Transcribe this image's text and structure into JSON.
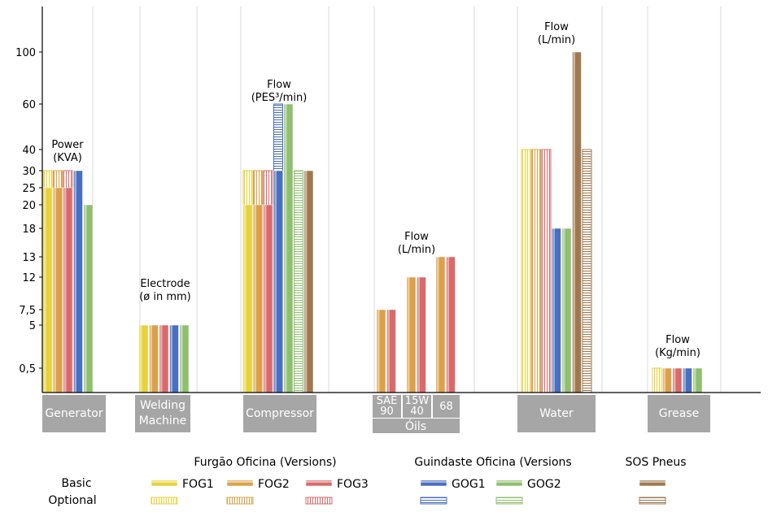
{
  "chart_data": {
    "type": "bar",
    "title": "",
    "xlabel": "",
    "ylabel": "",
    "y_ticks": [
      "0,5",
      "5",
      "7,5",
      "12",
      "13",
      "18",
      "20",
      "25",
      "30",
      "40",
      "60",
      "100"
    ],
    "y_tick_values": [
      0.5,
      5,
      7.5,
      12,
      13,
      18,
      20,
      25,
      30,
      40,
      60,
      100
    ],
    "grid": "vertical",
    "colors": {
      "FOG1": "#e6d23a",
      "FOG2": "#dca04a",
      "FOG3": "#d96a6a",
      "GOG1": "#4a6fc0",
      "GOG2": "#8fbf6f",
      "SOS": "#a07850",
      "category_box": "#a6a6a6"
    },
    "groups": [
      {
        "category": "Generator",
        "annotation": [
          "Power",
          "(KVA)"
        ],
        "bars": [
          {
            "series": "FOG1",
            "basic": 25,
            "optional": 30
          },
          {
            "series": "FOG2",
            "basic": 25,
            "optional": 30
          },
          {
            "series": "FOG3",
            "basic": 25,
            "optional": 30
          },
          {
            "series": "GOG1",
            "basic": 30,
            "optional": null
          },
          {
            "series": "GOG2",
            "basic": 20,
            "optional": null
          }
        ]
      },
      {
        "category": "Welding Machine",
        "annotation": [
          "Electrode",
          "(ø in mm)"
        ],
        "bars": [
          {
            "series": "FOG1",
            "basic": 5,
            "optional": null
          },
          {
            "series": "FOG2",
            "basic": 5,
            "optional": null
          },
          {
            "series": "FOG3",
            "basic": 5,
            "optional": null
          },
          {
            "series": "GOG1",
            "basic": 5,
            "optional": null
          },
          {
            "series": "GOG2",
            "basic": 5,
            "optional": null
          }
        ]
      },
      {
        "category": "Compressor",
        "annotation": [
          "Flow",
          "(PES³/min)"
        ],
        "bars": [
          {
            "series": "FOG1",
            "basic": 20,
            "optional": 30
          },
          {
            "series": "FOG2",
            "basic": 20,
            "optional": 30
          },
          {
            "series": "FOG3",
            "basic": 20,
            "optional": 30
          },
          {
            "series": "GOG1",
            "basic": 30,
            "optional": 60
          },
          {
            "series": "GOG2",
            "basic": 60,
            "optional": null
          },
          {
            "series": "GOG2",
            "basic": null,
            "optional": 30
          },
          {
            "series": "SOS",
            "basic": 30,
            "optional": null
          }
        ]
      },
      {
        "category": "Óils",
        "annotation": [
          "Flow",
          "(L/min)"
        ],
        "subcategories": [
          "SAE 90",
          "15W 40",
          "68"
        ],
        "bars": [
          {
            "series": "FOG2",
            "basic": 7.5,
            "optional": null,
            "sub": "SAE 90"
          },
          {
            "series": "FOG3",
            "basic": 7.5,
            "optional": null,
            "sub": "SAE 90"
          },
          {
            "series": "FOG2",
            "basic": 12,
            "optional": null,
            "sub": "15W 40"
          },
          {
            "series": "FOG3",
            "basic": 12,
            "optional": null,
            "sub": "15W 40"
          },
          {
            "series": "FOG2",
            "basic": 13,
            "optional": null,
            "sub": "68"
          },
          {
            "series": "FOG3",
            "basic": 13,
            "optional": null,
            "sub": "68"
          }
        ]
      },
      {
        "category": "Water",
        "annotation": [
          "Flow",
          "(L/min)"
        ],
        "bars": [
          {
            "series": "FOG1",
            "basic": null,
            "optional": 40
          },
          {
            "series": "FOG2",
            "basic": null,
            "optional": 40
          },
          {
            "series": "FOG3",
            "basic": null,
            "optional": 40
          },
          {
            "series": "GOG1",
            "basic": 18,
            "optional": null
          },
          {
            "series": "GOG2",
            "basic": 18,
            "optional": null
          },
          {
            "series": "SOS",
            "basic": 100,
            "optional": null
          },
          {
            "series": "SOS",
            "basic": null,
            "optional": 40
          }
        ]
      },
      {
        "category": "Grease",
        "annotation": [
          "Flow",
          "(Kg/min)"
        ],
        "bars": [
          {
            "series": "FOG1",
            "basic": null,
            "optional": 0.5
          },
          {
            "series": "FOG2",
            "basic": 0.5,
            "optional": null
          },
          {
            "series": "FOG3",
            "basic": 0.5,
            "optional": null
          },
          {
            "series": "GOG1",
            "basic": 0.5,
            "optional": null
          },
          {
            "series": "GOG2",
            "basic": 0.5,
            "optional": null
          }
        ]
      }
    ],
    "legend": {
      "placement": "bottom",
      "row_labels": [
        "Basic",
        "Optional"
      ],
      "headers": [
        "Furgão Oficina (Versions)",
        "Guindaste Oficina (Versions",
        "SOS Pneus"
      ],
      "entries": [
        {
          "series": "FOG1",
          "label": "FOG1"
        },
        {
          "series": "FOG2",
          "label": "FOG2"
        },
        {
          "series": "FOG3",
          "label": "FOG3"
        },
        {
          "series": "GOG1",
          "label": "GOG1"
        },
        {
          "series": "GOG2",
          "label": "GOG2"
        },
        {
          "series": "SOS",
          "label": ""
        }
      ]
    }
  }
}
